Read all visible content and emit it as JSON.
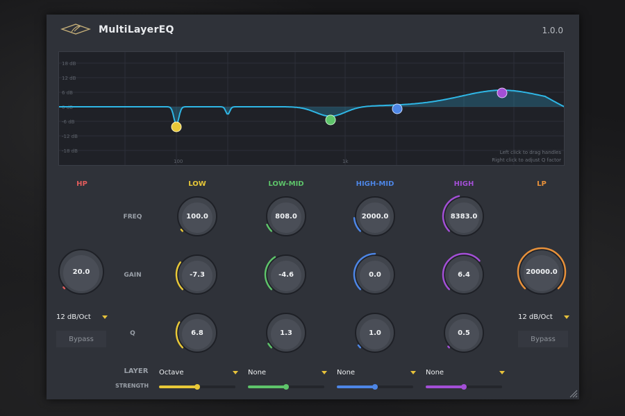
{
  "app": {
    "title": "MultiLayerEQ",
    "version": "1.0.0",
    "logo": "feather-diamond-logo"
  },
  "graph": {
    "db_labels": [
      "18 dB",
      "12 dB",
      "6 dB",
      "0 dB",
      "-6 dB",
      "-12 dB",
      "-18 dB"
    ],
    "freq_labels": [
      "100",
      "1k"
    ],
    "hint_line1": "Left click to drag handles",
    "hint_line2": "Right click to adjust Q factor",
    "curve_color": "#2fb7e6"
  },
  "bands": {
    "hp": {
      "label": "HP",
      "color": "#e25c5c",
      "freq": "20.0",
      "slope": "12 dB/Oct",
      "bypass": "Bypass",
      "level": 0.0
    },
    "low": {
      "label": "LOW",
      "color": "#e8c838",
      "freq": "100.0",
      "gain": "-7.3",
      "q": "6.8",
      "freq_level": 0.02,
      "gain_level": 0.3,
      "q_level": 0.28
    },
    "lowmid": {
      "label": "LOW-MID",
      "color": "#5ec46a",
      "freq": "808.0",
      "gain": "-4.6",
      "q": "1.3",
      "freq_level": 0.08,
      "gain_level": 0.38,
      "q_level": 0.05
    },
    "highmid": {
      "label": "HIGH-MID",
      "color": "#4d86e6",
      "freq": "2000.0",
      "gain": "0.0",
      "q": "1.0",
      "freq_level": 0.15,
      "gain_level": 0.5,
      "q_level": 0.03
    },
    "high": {
      "label": "HIGH",
      "color": "#a34fd6",
      "freq": "8383.0",
      "gain": "6.4",
      "q": "0.5",
      "freq_level": 0.45,
      "gain_level": 0.68,
      "q_level": 0.0
    },
    "lp": {
      "label": "LP",
      "color": "#e8913a",
      "freq": "20000.0",
      "slope": "12 dB/Oct",
      "bypass": "Bypass",
      "level": 1.0
    }
  },
  "rows": {
    "freq": "FREQ",
    "gain": "GAIN",
    "q": "Q"
  },
  "layer": {
    "label": "LAYER",
    "strength_label": "STRENGTH",
    "selects": [
      {
        "value": "Octave",
        "color": "#e8c838",
        "strength": 0.5
      },
      {
        "value": "None",
        "color": "#5ec46a",
        "strength": 0.5
      },
      {
        "value": "None",
        "color": "#4d86e6",
        "strength": 0.5
      },
      {
        "value": "None",
        "color": "#a34fd6",
        "strength": 0.5
      }
    ]
  }
}
